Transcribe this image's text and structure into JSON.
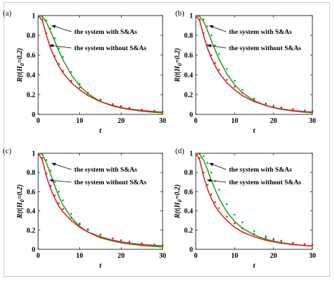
{
  "caption_fragment": "",
  "chart_data": [
    {
      "type": "line",
      "panel_label": "(a)",
      "xlabel": "t",
      "ylabel": "R(t|H_0=0.2)",
      "xlim": [
        0,
        30
      ],
      "ylim": [
        0,
        1
      ],
      "xticks": [
        "0",
        "10",
        "20",
        "30"
      ],
      "yticks": [
        "0",
        "0.2",
        "0.4",
        "0.6",
        "0.8",
        "1"
      ],
      "grid": false,
      "annotations": [
        "the system with S&As",
        "the system without S&As"
      ],
      "series": [
        {
          "color": "#2ca02c",
          "style": "solid",
          "x": [
            0,
            1,
            2,
            3,
            4,
            5,
            6,
            8,
            10,
            12,
            15,
            18,
            20,
            22,
            25,
            28,
            30
          ],
          "y": [
            1,
            0.99,
            0.93,
            0.84,
            0.74,
            0.64,
            0.55,
            0.4,
            0.29,
            0.21,
            0.13,
            0.085,
            0.065,
            0.05,
            0.032,
            0.021,
            0.016
          ]
        },
        {
          "color": "#2ca02c",
          "style": "dotted",
          "x": [
            0,
            1,
            2,
            3,
            4,
            5,
            6,
            8,
            10,
            12,
            15,
            18,
            20,
            22,
            25,
            28,
            30
          ],
          "y": [
            1,
            0.99,
            0.95,
            0.87,
            0.77,
            0.67,
            0.58,
            0.43,
            0.31,
            0.22,
            0.14,
            0.09,
            0.07,
            0.053,
            0.035,
            0.023,
            0.018
          ]
        },
        {
          "color": "#d62728",
          "style": "solid",
          "x": [
            0,
            1,
            2,
            3,
            4,
            5,
            6,
            8,
            10,
            12,
            15,
            18,
            20,
            22,
            25,
            28,
            30
          ],
          "y": [
            1,
            0.95,
            0.8,
            0.67,
            0.57,
            0.49,
            0.42,
            0.32,
            0.25,
            0.19,
            0.13,
            0.09,
            0.07,
            0.055,
            0.04,
            0.028,
            0.023
          ]
        },
        {
          "color": "#d62728",
          "style": "dotted",
          "x": [
            0,
            1,
            2,
            3,
            4,
            5,
            6,
            8,
            10,
            12,
            15,
            18,
            20,
            22,
            25,
            28,
            30
          ],
          "y": [
            1,
            0.96,
            0.82,
            0.69,
            0.59,
            0.51,
            0.44,
            0.34,
            0.27,
            0.21,
            0.15,
            0.105,
            0.085,
            0.068,
            0.05,
            0.037,
            0.031
          ]
        }
      ]
    },
    {
      "type": "line",
      "panel_label": "(b)",
      "xlabel": "t",
      "ylabel": "R(t|H_0=0.2)",
      "xlim": [
        0,
        30
      ],
      "ylim": [
        0,
        1
      ],
      "xticks": [
        "0",
        "10",
        "20",
        "30"
      ],
      "yticks": [
        "0",
        "0.2",
        "0.4",
        "0.6",
        "0.8",
        "1"
      ],
      "grid": false,
      "annotations": [
        "the system with S&As",
        "the system without S&As"
      ],
      "series": [
        {
          "color": "#2ca02c",
          "style": "solid",
          "x": [
            0,
            1,
            2,
            3,
            4,
            5,
            6,
            8,
            10,
            12,
            15,
            18,
            20,
            22,
            25,
            28,
            30
          ],
          "y": [
            1,
            0.99,
            0.94,
            0.85,
            0.75,
            0.65,
            0.56,
            0.41,
            0.3,
            0.22,
            0.14,
            0.09,
            0.068,
            0.052,
            0.034,
            0.022,
            0.017
          ]
        },
        {
          "color": "#2ca02c",
          "style": "dotted",
          "x": [
            0,
            1,
            2,
            3,
            4,
            5,
            6,
            8,
            10,
            12,
            15,
            18,
            20,
            22,
            25,
            28,
            30
          ],
          "y": [
            1,
            1,
            0.96,
            0.89,
            0.8,
            0.7,
            0.61,
            0.46,
            0.34,
            0.25,
            0.16,
            0.1,
            0.078,
            0.06,
            0.04,
            0.027,
            0.021
          ]
        },
        {
          "color": "#d62728",
          "style": "solid",
          "x": [
            0,
            1,
            2,
            3,
            4,
            5,
            6,
            8,
            10,
            12,
            15,
            18,
            20,
            22,
            25,
            28,
            30
          ],
          "y": [
            1,
            0.95,
            0.8,
            0.67,
            0.57,
            0.49,
            0.42,
            0.32,
            0.25,
            0.19,
            0.13,
            0.09,
            0.07,
            0.055,
            0.04,
            0.028,
            0.023
          ]
        },
        {
          "color": "#d62728",
          "style": "dotted",
          "x": [
            0,
            1,
            2,
            3,
            4,
            5,
            6,
            8,
            10,
            12,
            15,
            18,
            20,
            22,
            25,
            28,
            30
          ],
          "y": [
            1,
            0.96,
            0.82,
            0.7,
            0.6,
            0.52,
            0.45,
            0.35,
            0.28,
            0.22,
            0.155,
            0.11,
            0.09,
            0.072,
            0.054,
            0.04,
            0.033
          ]
        }
      ]
    },
    {
      "type": "line",
      "panel_label": "(c)",
      "xlabel": "t",
      "ylabel": "R(t|H_0=0.2)",
      "xlim": [
        0,
        30
      ],
      "ylim": [
        0,
        1
      ],
      "xticks": [
        "0",
        "10",
        "20",
        "30"
      ],
      "yticks": [
        "0",
        "0.2",
        "0.4",
        "0.6",
        "0.8",
        "1"
      ],
      "grid": false,
      "annotations": [
        "the system with S&As",
        "the system without S&As"
      ],
      "series": [
        {
          "color": "#2ca02c",
          "style": "solid",
          "x": [
            0,
            1,
            2,
            3,
            4,
            5,
            6,
            8,
            10,
            12,
            15,
            18,
            20,
            22,
            25,
            28,
            30
          ],
          "y": [
            1,
            0.99,
            0.9,
            0.78,
            0.66,
            0.55,
            0.46,
            0.33,
            0.24,
            0.18,
            0.12,
            0.085,
            0.068,
            0.055,
            0.04,
            0.03,
            0.025
          ]
        },
        {
          "color": "#2ca02c",
          "style": "dotted",
          "x": [
            0,
            1,
            2,
            3,
            4,
            5,
            6,
            8,
            10,
            12,
            15,
            18,
            20,
            22,
            25,
            28,
            30
          ],
          "y": [
            1,
            0.99,
            0.93,
            0.82,
            0.7,
            0.6,
            0.51,
            0.37,
            0.27,
            0.2,
            0.135,
            0.095,
            0.076,
            0.062,
            0.046,
            0.035,
            0.03
          ]
        },
        {
          "color": "#d62728",
          "style": "solid",
          "x": [
            0,
            1,
            2,
            3,
            4,
            5,
            6,
            8,
            10,
            12,
            15,
            18,
            20,
            22,
            25,
            28,
            30
          ],
          "y": [
            1,
            0.93,
            0.76,
            0.63,
            0.53,
            0.45,
            0.39,
            0.3,
            0.23,
            0.18,
            0.13,
            0.095,
            0.078,
            0.064,
            0.05,
            0.04,
            0.035
          ]
        },
        {
          "color": "#d62728",
          "style": "dotted",
          "x": [
            0,
            1,
            2,
            3,
            4,
            5,
            6,
            8,
            10,
            12,
            15,
            18,
            20,
            22,
            25,
            28,
            30
          ],
          "y": [
            1,
            0.95,
            0.79,
            0.66,
            0.56,
            0.48,
            0.42,
            0.33,
            0.26,
            0.21,
            0.155,
            0.115,
            0.095,
            0.08,
            0.063,
            0.05,
            0.044
          ]
        }
      ]
    },
    {
      "type": "line",
      "panel_label": "(d)",
      "xlabel": "t",
      "ylabel": "R(t|H_0=0.2)",
      "xlim": [
        0,
        30
      ],
      "ylim": [
        0,
        1
      ],
      "xticks": [
        "0",
        "10",
        "20",
        "30"
      ],
      "yticks": [
        "0",
        "0.2",
        "0.4",
        "0.6",
        "0.8",
        "1"
      ],
      "grid": false,
      "annotations": [
        "the system with S&As",
        "the system without S&As"
      ],
      "series": [
        {
          "color": "#2ca02c",
          "style": "solid",
          "x": [
            0,
            1,
            2,
            3,
            4,
            5,
            6,
            8,
            10,
            12,
            15,
            18,
            20,
            22,
            25,
            28,
            30
          ],
          "y": [
            1,
            0.99,
            0.93,
            0.83,
            0.72,
            0.62,
            0.53,
            0.39,
            0.29,
            0.22,
            0.15,
            0.105,
            0.085,
            0.07,
            0.052,
            0.04,
            0.034
          ]
        },
        {
          "color": "#2ca02c",
          "style": "dotted",
          "x": [
            0,
            1,
            2,
            3,
            4,
            5,
            6,
            8,
            10,
            12,
            15,
            18,
            20,
            22,
            25,
            28,
            30
          ],
          "y": [
            1,
            1,
            0.97,
            0.9,
            0.8,
            0.71,
            0.62,
            0.47,
            0.36,
            0.28,
            0.19,
            0.135,
            0.11,
            0.09,
            0.068,
            0.052,
            0.044
          ]
        },
        {
          "color": "#d62728",
          "style": "solid",
          "x": [
            0,
            1,
            2,
            3,
            4,
            5,
            6,
            8,
            10,
            12,
            15,
            18,
            20,
            22,
            25,
            28,
            30
          ],
          "y": [
            1,
            0.93,
            0.76,
            0.63,
            0.53,
            0.45,
            0.39,
            0.3,
            0.23,
            0.18,
            0.13,
            0.095,
            0.078,
            0.064,
            0.05,
            0.04,
            0.035
          ]
        },
        {
          "color": "#d62728",
          "style": "dotted",
          "x": [
            0,
            1,
            2,
            3,
            4,
            5,
            6,
            8,
            10,
            12,
            15,
            18,
            20,
            22,
            25,
            28,
            30
          ],
          "y": [
            1,
            0.95,
            0.8,
            0.67,
            0.57,
            0.49,
            0.43,
            0.34,
            0.27,
            0.22,
            0.16,
            0.12,
            0.1,
            0.085,
            0.067,
            0.054,
            0.047
          ]
        }
      ]
    }
  ]
}
